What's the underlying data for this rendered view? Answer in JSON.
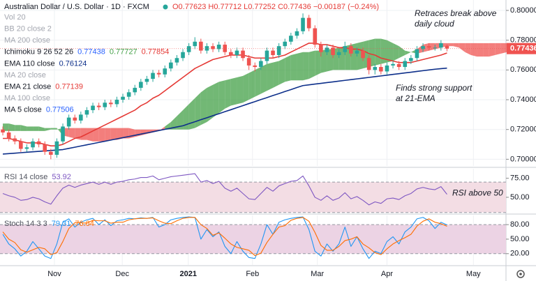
{
  "chart_data": [
    {
      "type": "candlestick",
      "title": "Australian Dollar / U.S. Dollar · 1D · FXCM",
      "ohlc_text": "O0.77623 H0.77712 L0.77252 C0.77436 −0.00187 (−0.24%)",
      "xlim": [
        -0.47,
        83.83
      ],
      "xticks": [
        {
          "value": 8.6,
          "label": "Nov"
        },
        {
          "value": 19.9,
          "label": "Dec"
        },
        {
          "value": 30.9,
          "label": "2021"
        },
        {
          "value": 41.6,
          "label": "Feb"
        },
        {
          "value": 52.4,
          "label": "Mar"
        },
        {
          "value": 64,
          "label": "Apr"
        },
        {
          "value": 78.4,
          "label": "May"
        }
      ],
      "ylim": [
        0.6955,
        0.807
      ],
      "yticks": [
        {
          "value": 0.7,
          "label": "0.70000"
        },
        {
          "value": 0.72,
          "label": "0.72000"
        },
        {
          "value": 0.74,
          "label": "0.74000"
        },
        {
          "value": 0.76,
          "label": "0.76000"
        },
        {
          "value": 0.78,
          "label": "0.78000"
        },
        {
          "value": 0.8,
          "label": "0.80000"
        }
      ],
      "grid": true,
      "up_color": "#26a69a",
      "down_color": "#ef5350",
      "open": [
        0.72,
        0.718,
        0.714,
        0.712,
        0.707,
        0.708,
        0.712,
        0.71,
        0.705,
        0.703,
        0.712,
        0.722,
        0.728,
        0.726,
        0.73,
        0.733,
        0.736,
        0.735,
        0.738,
        0.737,
        0.74,
        0.742,
        0.745,
        0.748,
        0.752,
        0.754,
        0.758,
        0.757,
        0.761,
        0.765,
        0.768,
        0.772,
        0.776,
        0.779,
        0.773,
        0.776,
        0.774,
        0.777,
        0.772,
        0.77,
        0.773,
        0.768,
        0.763,
        0.762,
        0.766,
        0.773,
        0.77,
        0.776,
        0.779,
        0.783,
        0.786,
        0.795,
        0.788,
        0.777,
        0.772,
        0.775,
        0.77,
        0.772,
        0.776,
        0.771,
        0.773,
        0.768,
        0.76,
        0.762,
        0.759,
        0.763,
        0.764,
        0.762,
        0.766,
        0.768,
        0.774,
        0.776,
        0.775,
        0.775,
        0.77623
      ],
      "high": [
        0.722,
        0.72,
        0.716,
        0.714,
        0.71,
        0.714,
        0.714,
        0.712,
        0.707,
        0.714,
        0.724,
        0.73,
        0.73,
        0.732,
        0.735,
        0.738,
        0.738,
        0.74,
        0.74,
        0.742,
        0.744,
        0.747,
        0.75,
        0.754,
        0.756,
        0.76,
        0.76,
        0.763,
        0.767,
        0.77,
        0.774,
        0.778,
        0.782,
        0.781,
        0.778,
        0.778,
        0.779,
        0.779,
        0.774,
        0.775,
        0.775,
        0.77,
        0.765,
        0.768,
        0.775,
        0.775,
        0.778,
        0.781,
        0.785,
        0.788,
        0.798,
        0.797,
        0.79,
        0.779,
        0.777,
        0.777,
        0.774,
        0.779,
        0.778,
        0.775,
        0.775,
        0.77,
        0.764,
        0.764,
        0.765,
        0.766,
        0.766,
        0.768,
        0.77,
        0.776,
        0.778,
        0.778,
        0.777,
        0.78,
        0.77712
      ],
      "low": [
        0.716,
        0.712,
        0.71,
        0.705,
        0.705,
        0.706,
        0.708,
        0.703,
        0.7,
        0.701,
        0.71,
        0.72,
        0.724,
        0.724,
        0.728,
        0.731,
        0.733,
        0.733,
        0.735,
        0.735,
        0.738,
        0.74,
        0.743,
        0.746,
        0.75,
        0.752,
        0.755,
        0.755,
        0.759,
        0.763,
        0.766,
        0.77,
        0.774,
        0.771,
        0.771,
        0.772,
        0.772,
        0.77,
        0.768,
        0.768,
        0.766,
        0.76,
        0.759,
        0.76,
        0.764,
        0.768,
        0.768,
        0.774,
        0.777,
        0.781,
        0.784,
        0.786,
        0.775,
        0.769,
        0.77,
        0.768,
        0.768,
        0.77,
        0.769,
        0.769,
        0.766,
        0.757,
        0.757,
        0.757,
        0.757,
        0.761,
        0.76,
        0.76,
        0.764,
        0.766,
        0.772,
        0.773,
        0.773,
        0.773,
        0.77252
      ],
      "close": [
        0.718,
        0.714,
        0.712,
        0.707,
        0.708,
        0.712,
        0.71,
        0.705,
        0.703,
        0.712,
        0.722,
        0.728,
        0.726,
        0.73,
        0.733,
        0.736,
        0.735,
        0.738,
        0.737,
        0.74,
        0.742,
        0.745,
        0.748,
        0.752,
        0.754,
        0.758,
        0.757,
        0.761,
        0.765,
        0.768,
        0.772,
        0.776,
        0.779,
        0.773,
        0.776,
        0.774,
        0.777,
        0.772,
        0.77,
        0.773,
        0.768,
        0.763,
        0.762,
        0.766,
        0.773,
        0.77,
        0.776,
        0.779,
        0.783,
        0.786,
        0.795,
        0.788,
        0.777,
        0.772,
        0.775,
        0.77,
        0.772,
        0.776,
        0.771,
        0.773,
        0.768,
        0.76,
        0.762,
        0.759,
        0.763,
        0.764,
        0.762,
        0.766,
        0.768,
        0.774,
        0.776,
        0.775,
        0.775,
        0.778,
        0.77436
      ],
      "last_color": "#ef5350",
      "indicators": [
        {
          "name": "Vol 20",
          "hidden": true
        },
        {
          "name": "BB 20 close 2",
          "hidden": true
        },
        {
          "name": "MA 200 close",
          "hidden": true
        },
        {
          "name": "Ichimoku 9 26 52 26",
          "legend_values": [
            0.77438,
            0.77727,
            0.77854
          ],
          "legend_colors": [
            "#2962ff",
            "#43a047",
            "#e53935"
          ],
          "up_color": "#43a047",
          "down_color": "#ef5350",
          "span_a": [
            0.724,
            0.724,
            0.723,
            0.723,
            0.722,
            0.722,
            0.722,
            0.721,
            0.721,
            0.721,
            0.716,
            0.715,
            0.714,
            0.713,
            0.713,
            0.712,
            0.712,
            0.712,
            0.713,
            0.713,
            0.714,
            0.714,
            0.715,
            0.716,
            0.717,
            0.718,
            0.719,
            0.722,
            0.725,
            0.729,
            0.733,
            0.737,
            0.741,
            0.745,
            0.748,
            0.75,
            0.752,
            0.753,
            0.754,
            0.755,
            0.756,
            0.758,
            0.76,
            0.762,
            0.764,
            0.765,
            0.766,
            0.768,
            0.77,
            0.771,
            0.772,
            0.772,
            0.773,
            0.773,
            0.774,
            0.774,
            0.775,
            0.776,
            0.777,
            0.778,
            0.779,
            0.78,
            0.781,
            0.781,
            0.78,
            0.778,
            0.776,
            0.773,
            0.772,
            0.771,
            0.772,
            0.773,
            0.774,
            0.775,
            0.776,
            0.776,
            0.775,
            0.772,
            0.77,
            0.769,
            0.769,
            0.769,
            0.77,
            0.771,
            0.772
          ],
          "span_b": [
            0.719,
            0.719,
            0.719,
            0.719,
            0.719,
            0.719,
            0.719,
            0.719,
            0.72,
            0.72,
            0.721,
            0.721,
            0.721,
            0.721,
            0.721,
            0.721,
            0.721,
            0.721,
            0.721,
            0.721,
            0.721,
            0.721,
            0.72,
            0.72,
            0.72,
            0.72,
            0.72,
            0.72,
            0.72,
            0.72,
            0.72,
            0.72,
            0.721,
            0.723,
            0.725,
            0.728,
            0.731,
            0.734,
            0.736,
            0.737,
            0.738,
            0.74,
            0.742,
            0.744,
            0.746,
            0.748,
            0.75,
            0.752,
            0.753,
            0.753,
            0.753,
            0.754,
            0.756,
            0.758,
            0.759,
            0.76,
            0.76,
            0.76,
            0.76,
            0.76,
            0.761,
            0.762,
            0.763,
            0.764,
            0.765,
            0.766,
            0.768,
            0.77,
            0.772,
            0.774,
            0.777,
            0.778,
            0.778,
            0.778,
            0.778,
            0.778,
            0.778,
            0.778,
            0.778,
            0.778,
            0.778,
            0.778,
            0.778,
            0.778,
            0.778
          ]
        },
        {
          "name": "EMA 110 close",
          "color": "#0d2f8a",
          "values": [
            0.7035,
            0.7038,
            0.7041,
            0.7044,
            0.7047,
            0.705,
            0.7053,
            0.7056,
            0.7059,
            0.7062,
            0.7065,
            0.7073,
            0.7081,
            0.7089,
            0.7097,
            0.7105,
            0.7113,
            0.7121,
            0.7129,
            0.7137,
            0.7145,
            0.7153,
            0.7161,
            0.7169,
            0.7177,
            0.7185,
            0.7193,
            0.7201,
            0.7209,
            0.7217,
            0.7225,
            0.7239,
            0.7252,
            0.7266,
            0.7279,
            0.7293,
            0.7306,
            0.732,
            0.7333,
            0.7347,
            0.736,
            0.7374,
            0.7387,
            0.7401,
            0.7414,
            0.7428,
            0.7441,
            0.7455,
            0.7468,
            0.7482,
            0.7495,
            0.75,
            0.7505,
            0.751,
            0.7515,
            0.752,
            0.7525,
            0.753,
            0.7535,
            0.754,
            0.7545,
            0.755,
            0.7555,
            0.756,
            0.7565,
            0.757,
            0.7575,
            0.758,
            0.7585,
            0.759,
            0.7595,
            0.76,
            0.7605,
            0.7609,
            0.76124
          ]
        },
        {
          "name": "MA 20 close",
          "hidden": true
        },
        {
          "name": "EMA 21 close",
          "color": "#e53935",
          "values": [
            0.714,
            0.714,
            0.713,
            0.712,
            0.711,
            0.711,
            0.711,
            0.71,
            0.709,
            0.709,
            0.71,
            0.712,
            0.714,
            0.715,
            0.717,
            0.719,
            0.721,
            0.723,
            0.725,
            0.727,
            0.729,
            0.731,
            0.733,
            0.736,
            0.738,
            0.741,
            0.743,
            0.746,
            0.749,
            0.752,
            0.755,
            0.758,
            0.761,
            0.763,
            0.765,
            0.767,
            0.768,
            0.769,
            0.77,
            0.77,
            0.77,
            0.769,
            0.768,
            0.768,
            0.768,
            0.768,
            0.769,
            0.77,
            0.772,
            0.774,
            0.776,
            0.778,
            0.778,
            0.777,
            0.777,
            0.776,
            0.775,
            0.775,
            0.774,
            0.774,
            0.773,
            0.771,
            0.77,
            0.768,
            0.767,
            0.766,
            0.765,
            0.765,
            0.765,
            0.766,
            0.767,
            0.768,
            0.769,
            0.77,
            0.77139
          ]
        },
        {
          "name": "MA 100 close",
          "hidden": true
        },
        {
          "name": "MA 5 close",
          "legend_values": [
            0.77506
          ],
          "legend_colors": [
            "#2962ff"
          ]
        }
      ],
      "annotations": [
        {
          "lines": [
            "Retraces break above",
            "daily cloud"
          ]
        },
        {
          "lines": [
            "Finds strong support",
            "at 21-EMA"
          ]
        }
      ]
    },
    {
      "type": "line",
      "title": "RSI 14 close",
      "ylim": [
        29.8,
        87.5
      ],
      "yticks": [
        {
          "value": 75,
          "label": "75.00"
        },
        {
          "value": 50,
          "label": "50.00"
        }
      ],
      "band": [
        30,
        70
      ],
      "band_color": "#f3dde4",
      "series": [
        {
          "name": "RSI",
          "color": "#7e57c2",
          "values": [
            55,
            52,
            50,
            46,
            47,
            50,
            48,
            44,
            41,
            52,
            62,
            66,
            63,
            66,
            68,
            70,
            67,
            70,
            67,
            70,
            71,
            73,
            74,
            76,
            76,
            78,
            73,
            75,
            77,
            78,
            79,
            80,
            81,
            70,
            72,
            68,
            71,
            62,
            58,
            62,
            55,
            48,
            47,
            55,
            63,
            58,
            65,
            68,
            71,
            72,
            78,
            65,
            50,
            46,
            52,
            46,
            49,
            56,
            48,
            51,
            46,
            40,
            44,
            42,
            48,
            49,
            47,
            52,
            55,
            61,
            63,
            61,
            60,
            64,
            53.92
          ]
        }
      ],
      "annotations": [
        {
          "lines": [
            "RSI above 50"
          ]
        }
      ]
    },
    {
      "type": "line",
      "title": "Stoch 14 3 3",
      "ylim": [
        -3.4,
        99
      ],
      "yticks": [
        {
          "value": 80,
          "label": "80.00"
        },
        {
          "value": 50,
          "label": "50.00"
        },
        {
          "value": 20,
          "label": "20.00"
        }
      ],
      "band": [
        20,
        80
      ],
      "band_color": "#ecd3e4",
      "series": [
        {
          "name": "%K",
          "color": "#2196f3",
          "values": [
            60,
            40,
            30,
            15,
            25,
            45,
            30,
            15,
            10,
            40,
            85,
            92,
            75,
            85,
            90,
            93,
            80,
            90,
            78,
            88,
            90,
            93,
            92,
            94,
            93,
            95,
            75,
            80,
            90,
            93,
            95,
            96,
            95,
            50,
            70,
            55,
            65,
            35,
            20,
            45,
            25,
            12,
            10,
            40,
            80,
            60,
            85,
            90,
            93,
            95,
            96,
            70,
            25,
            15,
            40,
            25,
            40,
            75,
            35,
            55,
            30,
            10,
            25,
            20,
            45,
            55,
            40,
            65,
            75,
            92,
            95,
            88,
            72,
            85,
            79.31
          ]
        },
        {
          "name": "%D",
          "color": "#ff6d00",
          "values": [
            65,
            50,
            43,
            28,
            23,
            28,
            33,
            30,
            18,
            22,
            45,
            72,
            84,
            84,
            83,
            89,
            88,
            88,
            83,
            85,
            85,
            90,
            92,
            93,
            93,
            94,
            88,
            83,
            82,
            88,
            93,
            95,
            95,
            80,
            72,
            58,
            63,
            52,
            40,
            33,
            30,
            27,
            16,
            21,
            43,
            60,
            75,
            78,
            89,
            93,
            95,
            87,
            64,
            37,
            27,
            27,
            35,
            47,
            50,
            55,
            40,
            32,
            22,
            18,
            30,
            40,
            47,
            53,
            60,
            77,
            87,
            92,
            85,
            82,
            76.64
          ]
        }
      ]
    }
  ]
}
